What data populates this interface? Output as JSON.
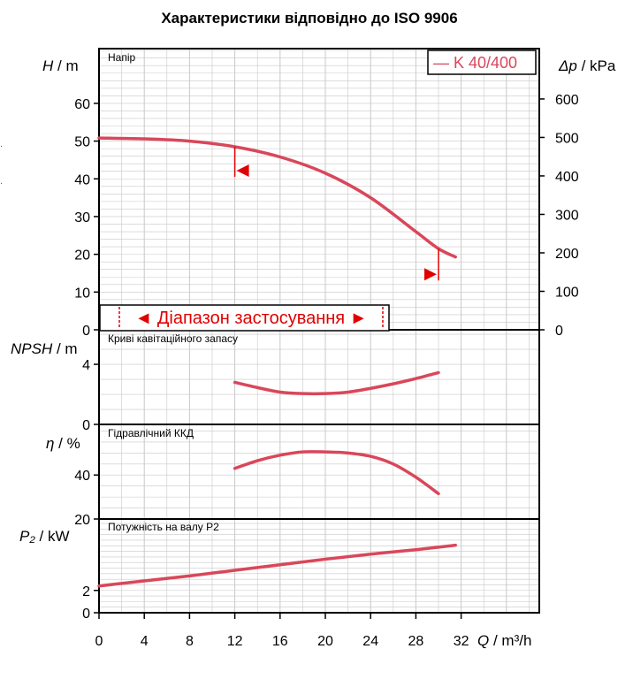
{
  "title": "Характеристики відповідно до ISO 9906",
  "legend": {
    "label": "— K 40/400",
    "color": "#d9475a"
  },
  "accent_color": "#d9475a",
  "range_marker": {
    "label": "◄ Діапазон застосування ►",
    "color": "#e00000"
  },
  "x_axis": {
    "ticks": [
      "0",
      "4",
      "8",
      "12",
      "16",
      "20",
      "24",
      "28",
      "32"
    ],
    "label_q": "Q",
    "label_unit": " / m³/h"
  },
  "panels": {
    "head": {
      "name": "Напір",
      "ylabel_var": "H",
      "ylabel_unit": " / m",
      "ticks": [
        "0",
        "10",
        "20",
        "30",
        "40",
        "50",
        "60"
      ]
    },
    "head_right": {
      "ylabel_var": "Δp",
      "ylabel_unit": " / kPa",
      "ticks": [
        "0",
        "100",
        "200",
        "300",
        "400",
        "500",
        "600"
      ]
    },
    "npsh": {
      "name": "Криві кавітаційного запасу",
      "ylabel_var": "NPSH",
      "ylabel_unit": " / m",
      "ticks": [
        "0",
        "4"
      ]
    },
    "eta": {
      "name": "Гідравлічний ККД",
      "ylabel_var": "η",
      "ylabel_unit": " / %",
      "ticks": [
        "20",
        "40"
      ]
    },
    "power": {
      "name": "Потужність на валу P2",
      "ylabel_var": "P₂",
      "ylabel_unit": " / kW",
      "ticks": [
        "0",
        "2"
      ]
    }
  },
  "chart_data": [
    {
      "type": "line",
      "title": "Напір",
      "xlabel": "Q / m³/h",
      "ylabel": "H / m",
      "ylabel_right": "Δp / kPa",
      "xlim": [
        0,
        34
      ],
      "ylim": [
        0,
        72
      ],
      "grid": true,
      "legend": "top-right",
      "series": [
        {
          "name": "K 40/400",
          "x": [
            0,
            4,
            8,
            12,
            16,
            20,
            24,
            28,
            30,
            31.5
          ],
          "y": [
            50.8,
            50.6,
            50.0,
            48.5,
            45.8,
            41.5,
            35.0,
            26.0,
            21.5,
            19.3
          ]
        }
      ],
      "operating_limits": [
        12,
        30
      ],
      "application_range": [
        2,
        25.5
      ]
    },
    {
      "type": "line",
      "title": "Криві кавітаційного запасу",
      "xlabel": "Q / m³/h",
      "ylabel": "NPSH / m",
      "xlim": [
        0,
        34
      ],
      "ylim": [
        0,
        6
      ],
      "grid": true,
      "series": [
        {
          "x": [
            12,
            14,
            16,
            18,
            20,
            22,
            24,
            26,
            28,
            30
          ],
          "y": [
            2.8,
            2.45,
            2.15,
            2.05,
            2.05,
            2.15,
            2.4,
            2.7,
            3.05,
            3.45
          ]
        }
      ]
    },
    {
      "type": "line",
      "title": "Гідравлічний ККД",
      "xlabel": "Q / m³/h",
      "ylabel": "η / %",
      "xlim": [
        0,
        34
      ],
      "ylim": [
        20,
        60
      ],
      "grid": true,
      "series": [
        {
          "x": [
            12,
            14,
            16,
            18,
            20,
            22,
            24,
            26,
            28,
            30
          ],
          "y": [
            43,
            46.5,
            49,
            50.5,
            50.5,
            50,
            48.5,
            45,
            39,
            31.5
          ]
        }
      ]
    },
    {
      "type": "line",
      "title": "Потужність на валу P2",
      "xlabel": "Q / m³/h",
      "ylabel": "P₂ / kW",
      "xlim": [
        0,
        34
      ],
      "ylim": [
        0,
        8
      ],
      "grid": true,
      "series": [
        {
          "x": [
            0,
            4,
            8,
            12,
            16,
            20,
            24,
            28,
            31.5
          ],
          "y": [
            2.4,
            2.85,
            3.3,
            3.8,
            4.3,
            4.8,
            5.25,
            5.65,
            6.05
          ]
        }
      ]
    }
  ]
}
